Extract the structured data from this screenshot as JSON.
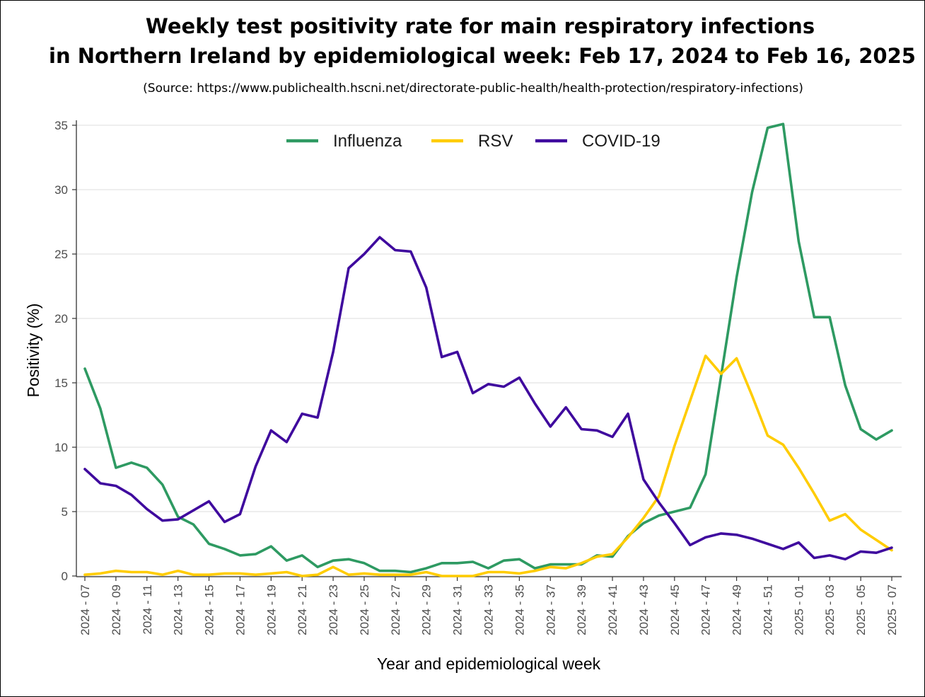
{
  "title_line1": "Weekly test positivity rate for main respiratory infections",
  "title_line2": "in Northern Ireland by epidemiological week: Feb 17, 2024 to Feb 16, 2025",
  "source": "(Source: https://www.publichealth.hscni.net/directorate-public-health/health-protection/respiratory-infections)",
  "colors": {
    "influenza": "#2e9a62",
    "rsv": "#ffcc00",
    "covid": "#3f0a9e",
    "grid": "#e3e3e3"
  },
  "chart_data": {
    "type": "line",
    "xlabel": "Year and epidemiological week",
    "ylabel": "Positivity (%)",
    "ylim": [
      0,
      35
    ],
    "yticks": [
      0,
      5,
      10,
      15,
      20,
      25,
      30,
      35
    ],
    "grid": true,
    "legend_position": "top",
    "x": [
      "2024 - 07",
      "2024 - 08",
      "2024 - 09",
      "2024 - 10",
      "2024 - 11",
      "2024 - 12",
      "2024 - 13",
      "2024 - 14",
      "2024 - 15",
      "2024 - 16",
      "2024 - 17",
      "2024 - 18",
      "2024 - 19",
      "2024 - 20",
      "2024 - 21",
      "2024 - 22",
      "2024 - 23",
      "2024 - 24",
      "2024 - 25",
      "2024 - 26",
      "2024 - 27",
      "2024 - 28",
      "2024 - 29",
      "2024 - 30",
      "2024 - 31",
      "2024 - 32",
      "2024 - 33",
      "2024 - 34",
      "2024 - 35",
      "2024 - 36",
      "2024 - 37",
      "2024 - 38",
      "2024 - 39",
      "2024 - 40",
      "2024 - 41",
      "2024 - 42",
      "2024 - 43",
      "2024 - 44",
      "2024 - 45",
      "2024 - 46",
      "2024 - 47",
      "2024 - 48",
      "2024 - 49",
      "2024 - 50",
      "2024 - 51",
      "2024 - 52",
      "2025 - 01",
      "2025 - 02",
      "2025 - 03",
      "2025 - 04",
      "2025 - 05",
      "2025 - 06",
      "2025 - 07"
    ],
    "xtick_labels": [
      "2024 - 07",
      "2024 - 09",
      "2024 - 11",
      "2024 - 13",
      "2024 - 15",
      "2024 - 17",
      "2024 - 19",
      "2024 - 21",
      "2024 - 23",
      "2024 - 25",
      "2024 - 27",
      "2024 - 29",
      "2024 - 31",
      "2024 - 33",
      "2024 - 35",
      "2024 - 37",
      "2024 - 39",
      "2024 - 41",
      "2024 - 43",
      "2024 - 45",
      "2024 - 47",
      "2024 - 49",
      "2024 - 51",
      "2025 - 01",
      "2025 - 03",
      "2025 - 05",
      "2025 - 07"
    ],
    "series": [
      {
        "name": "Influenza",
        "color": "#2e9a62",
        "values": [
          16.1,
          13.0,
          8.4,
          8.8,
          8.4,
          7.1,
          4.6,
          4.0,
          2.5,
          2.1,
          1.6,
          1.7,
          2.3,
          1.2,
          1.6,
          0.7,
          1.2,
          1.3,
          1.0,
          0.4,
          0.4,
          0.3,
          0.6,
          1.0,
          1.0,
          1.1,
          0.6,
          1.2,
          1.3,
          0.6,
          0.9,
          0.9,
          0.9,
          1.6,
          1.5,
          3.1,
          4.1,
          4.7,
          5.0,
          5.3,
          7.9,
          15.5,
          23.2,
          29.8,
          34.8,
          35.1,
          26.0,
          20.1,
          20.1,
          14.8,
          11.4,
          10.6,
          11.3
        ]
      },
      {
        "name": "RSV",
        "color": "#ffcc00",
        "values": [
          0.1,
          0.2,
          0.4,
          0.3,
          0.3,
          0.1,
          0.4,
          0.1,
          0.1,
          0.2,
          0.2,
          0.1,
          0.2,
          0.3,
          0.0,
          0.1,
          0.7,
          0.1,
          0.2,
          0.1,
          0.1,
          0.1,
          0.3,
          0.0,
          0.0,
          0.0,
          0.3,
          0.3,
          0.2,
          0.4,
          0.7,
          0.6,
          1.0,
          1.5,
          1.7,
          3.0,
          4.5,
          6.2,
          10.1,
          13.6,
          17.1,
          15.7,
          16.9,
          14.0,
          10.9,
          10.2,
          8.4,
          6.4,
          4.3,
          4.8,
          3.6,
          2.8,
          2.0
        ]
      },
      {
        "name": "COVID-19",
        "color": "#3f0a9e",
        "values": [
          8.3,
          7.2,
          7.0,
          6.3,
          5.2,
          4.3,
          4.4,
          5.1,
          5.8,
          4.2,
          4.8,
          8.5,
          11.3,
          10.4,
          12.6,
          12.3,
          17.4,
          23.9,
          25.0,
          26.3,
          25.3,
          25.2,
          22.4,
          17.0,
          17.4,
          14.2,
          14.9,
          14.7,
          15.4,
          13.4,
          11.6,
          13.1,
          11.4,
          11.3,
          10.8,
          12.6,
          7.5,
          5.7,
          4.1,
          2.4,
          3.0,
          3.3,
          3.2,
          2.9,
          2.5,
          2.1,
          2.6,
          1.4,
          1.6,
          1.3,
          1.9,
          1.8,
          2.2
        ]
      }
    ]
  }
}
